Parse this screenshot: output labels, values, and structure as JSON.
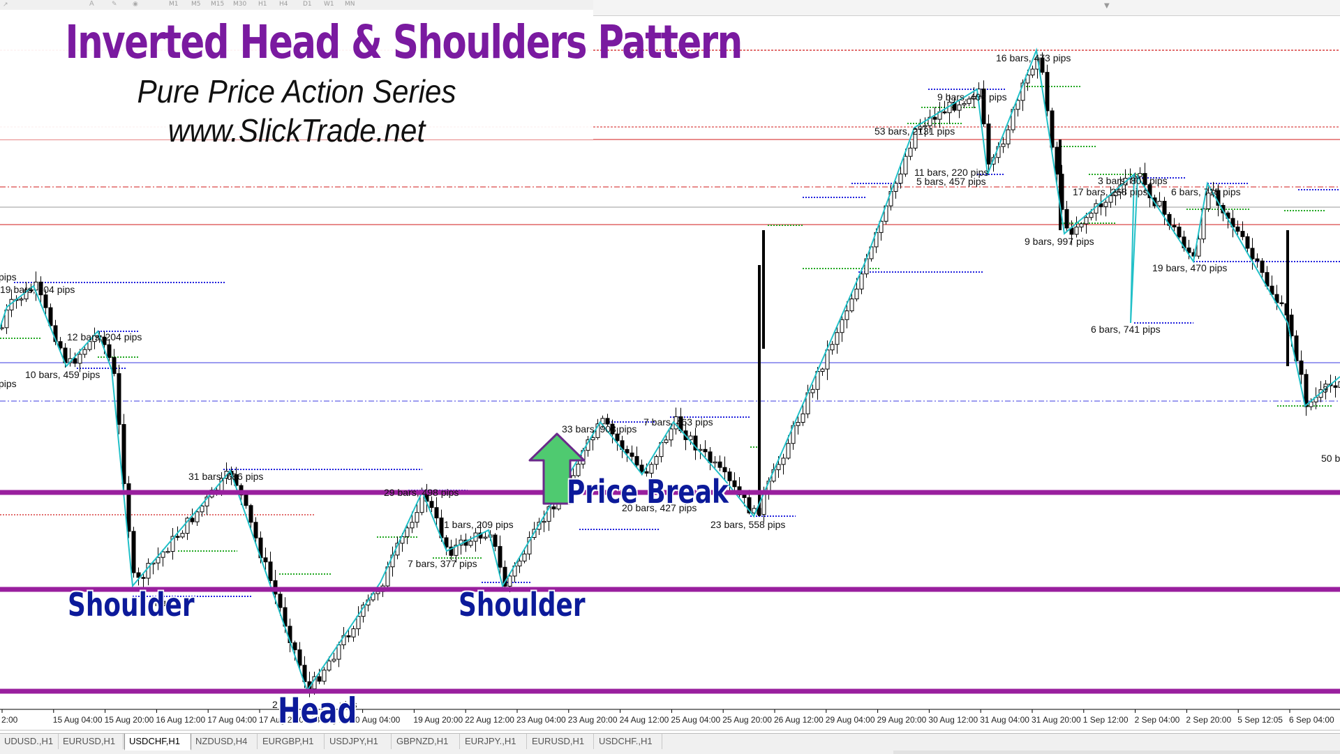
{
  "toolbar": {
    "timeframes": [
      "M1",
      "M5",
      "M15",
      "M30",
      "H1",
      "H4",
      "D1",
      "W1",
      "MN"
    ]
  },
  "title": {
    "main": "Inverted Head & Shoulders Pattern",
    "subtitle": "Pure Price Action Series",
    "site": "www.SlickTrade.net"
  },
  "annotations": {
    "shoulder_left": "Shoulder",
    "shoulder_right": "Shoulder",
    "head": "Head",
    "price_break": "Price Break"
  },
  "colors": {
    "pattern_lines": "#991f9e",
    "zigzag": "#22c0c8",
    "arrow": "#4fca70",
    "label_text": "#0c1a9a",
    "title": "#7a1aa0"
  },
  "chart_data": {
    "type": "line",
    "series_type": "candlestick-zigzag",
    "x_ticks": [
      "2:00",
      "15 Aug 04:00",
      "15 Aug 20:00",
      "16 Aug 12:00",
      "17 Aug 04:00",
      "17 Aug 20:00",
      "18 Aug 12:00",
      "Aug 04:00",
      "19 Aug 20:00",
      "22 Aug 12:00",
      "23 Aug 04:00",
      "23 Aug 20:00",
      "24 Aug 12:00",
      "25 Aug 04:00",
      "25 Aug 20:00",
      "26 Aug 12:00",
      "29 Aug 04:00",
      "29 Aug 20:00",
      "30 Aug 12:00",
      "31 Aug 04:00",
      "31 Aug 20:00",
      "1 Sep 12:00",
      "2 Sep 04:00",
      "2 Sep 20:00",
      "5 Sep 12:05",
      "6 Sep 04:00",
      "6 Sep 20:00"
    ],
    "zigzag_labels": [
      "pips",
      "19 bars, 504 pips",
      "12 bars, 204 pips",
      "10 bars, 459 pips",
      "pips",
      "31 bars, 686 pips",
      "pips",
      "29 bars, 498 pips",
      "7 bars, 377 pips",
      "1 bars, 209 pips",
      "33 bars, 903 pips",
      "7 bars, 463 pips",
      "20 bars, 427 pips",
      "23 bars, 558 pips",
      "53 bars, 2131 pips",
      "9 bars, 406 pips",
      "16 bars, 473 pips",
      "11 bars, 220 pips",
      "5 bars, 457 pips",
      "9 bars, 997 pips",
      "17 bars, 268 pips",
      "3 bars, 801 pips",
      "6 bars, 715 pips",
      "6 bars, 741 pips",
      "19 bars, 470 pips",
      "3",
      "50 b",
      "2",
      "pips",
      "ps"
    ],
    "pattern_levels": [
      "neckline",
      "shoulder-level",
      "head-level"
    ]
  },
  "tabs": [
    "UDUSD.,H1",
    "EURUSD,H1",
    "USDCHF,H1",
    "NZDUSD,H4",
    "EURGBP,H1",
    "USDJPY,H1",
    "GBPNZD,H1",
    "EURJPY.,H1",
    "EURUSD,H1",
    "USDCHF.,H1"
  ],
  "active_tab_index": 2
}
